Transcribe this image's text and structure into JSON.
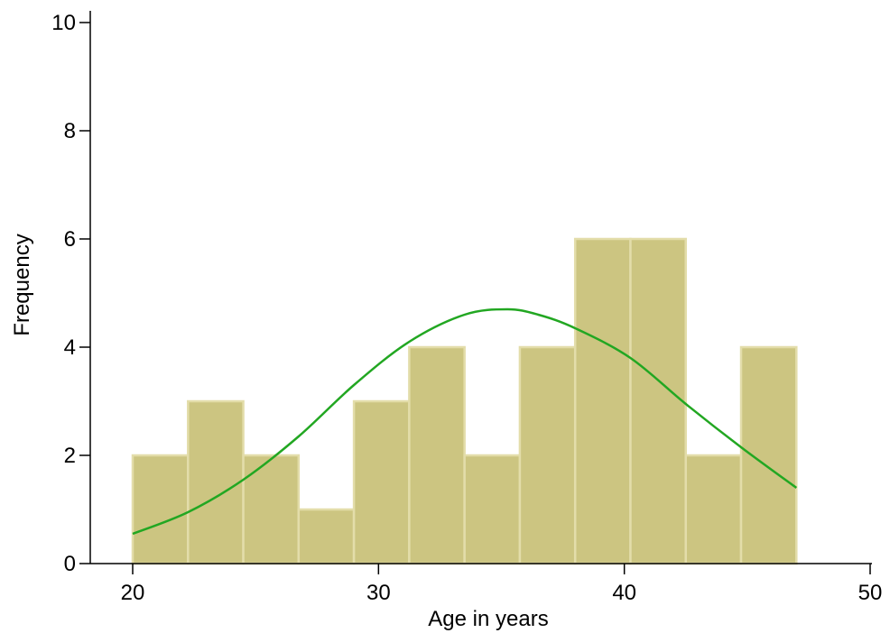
{
  "chart_data": {
    "type": "bar",
    "subtype": "histogram",
    "title": "",
    "xlabel": "Age in years",
    "ylabel": "Frequency",
    "xlim": [
      20,
      50
    ],
    "ylim": [
      0,
      10
    ],
    "x_ticks": [
      20,
      30,
      40,
      50
    ],
    "y_ticks": [
      0,
      2,
      4,
      6,
      8,
      10
    ],
    "grid": false,
    "bins": [
      {
        "x0": 20.0,
        "x1": 22.25,
        "value": 2
      },
      {
        "x0": 22.25,
        "x1": 24.5,
        "value": 3
      },
      {
        "x0": 24.5,
        "x1": 26.75,
        "value": 2
      },
      {
        "x0": 26.75,
        "x1": 29.0,
        "value": 1
      },
      {
        "x0": 29.0,
        "x1": 31.25,
        "value": 3
      },
      {
        "x0": 31.25,
        "x1": 33.5,
        "value": 4
      },
      {
        "x0": 33.5,
        "x1": 35.75,
        "value": 2
      },
      {
        "x0": 35.75,
        "x1": 38.0,
        "value": 4
      },
      {
        "x0": 38.0,
        "x1": 40.25,
        "value": 6
      },
      {
        "x0": 40.25,
        "x1": 42.5,
        "value": 6
      },
      {
        "x0": 42.5,
        "x1": 44.75,
        "value": 2
      },
      {
        "x0": 44.75,
        "x1": 47.0,
        "value": 4
      }
    ],
    "normal_curve": {
      "x": [
        20,
        22.25,
        24.5,
        26.75,
        29,
        31.25,
        33.5,
        35.25,
        36.5,
        38,
        40.25,
        42.5,
        44.75,
        47
      ],
      "y": [
        0.55,
        0.95,
        1.55,
        2.35,
        3.3,
        4.1,
        4.6,
        4.7,
        4.6,
        4.35,
        3.8,
        2.95,
        2.15,
        1.4
      ]
    },
    "colors": {
      "bar_fill": "#CCC581",
      "bar_edge": "#E3DDAA",
      "curve": "#22A722",
      "axis": "#000000"
    }
  }
}
